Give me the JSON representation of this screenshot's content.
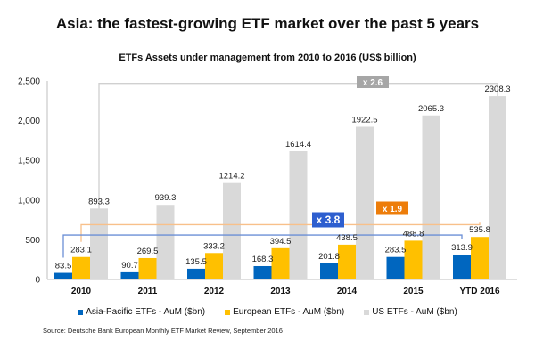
{
  "chart_data": {
    "type": "bar",
    "title": "Asia: the fastest-growing ETF market over the past 5 years",
    "subtitle": "ETFs Assets under management from 2010 to 2016 (US$ billion)",
    "xlabel": "",
    "ylabel": "",
    "ylim": [
      0,
      2500
    ],
    "yticks": [
      0,
      500,
      1000,
      1500,
      2000,
      2500
    ],
    "ytick_labels": [
      "0",
      "500",
      "1,000",
      "1,500",
      "2,000",
      "2,500"
    ],
    "grid": false,
    "legend_position": "bottom",
    "categories": [
      "2010",
      "2011",
      "2012",
      "2013",
      "2014",
      "2015",
      "YTD 2016"
    ],
    "series": [
      {
        "name": "Asia-Pacific ETFs - AuM ($bn)",
        "color": "#0066bf",
        "values": [
          83.5,
          90.7,
          135.5,
          168.3,
          201.8,
          283.5,
          313.9
        ]
      },
      {
        "name": "European ETFs - AuM ($bn)",
        "color": "#ffc000",
        "values": [
          283.1,
          269.5,
          333.2,
          394.5,
          438.5,
          488.8,
          535.8
        ]
      },
      {
        "name": "US ETFs - AuM ($bn)",
        "color": "#d9d9d9",
        "values": [
          893.3,
          939.3,
          1214.2,
          1614.4,
          1922.5,
          2065.3,
          2308.3
        ]
      }
    ],
    "annotations": [
      {
        "label": "x 2.6",
        "series": "US ETFs - AuM ($bn)",
        "from": "2010",
        "to": "YTD 2016",
        "color": "#a6a6a6",
        "line_color": "#d0d0d0",
        "level": 2470
      },
      {
        "label": "x 1.9",
        "series": "European ETFs - AuM ($bn)",
        "from": "2010",
        "to": "YTD 2016",
        "color": "#ed7d0a",
        "line_color": "#f8c08a",
        "level": 690
      },
      {
        "label": "x 3.8",
        "series": "Asia-Pacific ETFs - AuM ($bn)",
        "from": "2010",
        "to": "YTD 2016",
        "color": "#2e5fcf",
        "line_color": "#6b8fd6",
        "level": 560
      }
    ]
  },
  "source": "Source: Deutsche Bank European Monthly ETF Market Review, September 2016"
}
